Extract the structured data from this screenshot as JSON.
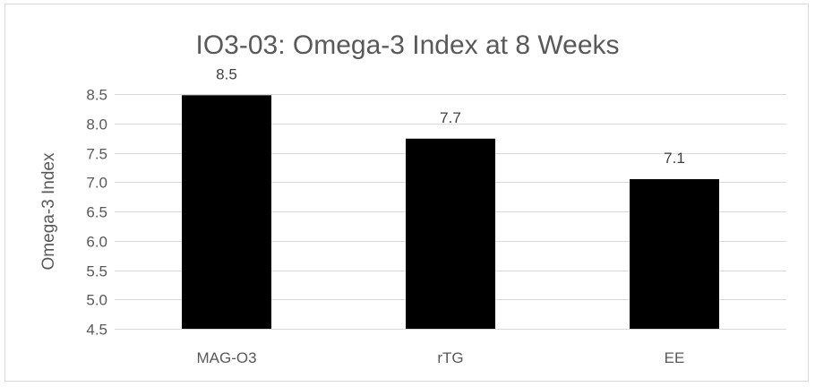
{
  "chart_data": {
    "type": "bar",
    "title": "IO3-03: Omega-3 Index at 8 Weeks",
    "xlabel": "",
    "ylabel": "Omega-3 Index",
    "categories": [
      "MAG-O3",
      "rTG",
      "EE"
    ],
    "values": [
      8.48,
      7.74,
      7.05
    ],
    "data_labels": [
      "8.5",
      "7.7",
      "7.1"
    ],
    "ylim": [
      4.5,
      8.5
    ],
    "y_ticks": [
      "4.5",
      "5.0",
      "5.5",
      "6.0",
      "6.5",
      "7.0",
      "7.5",
      "8.0",
      "8.5"
    ],
    "grid": true,
    "legend": "none",
    "bar_color": "#000000",
    "text_color": "#595959",
    "grid_color": "#d9d9d9"
  }
}
